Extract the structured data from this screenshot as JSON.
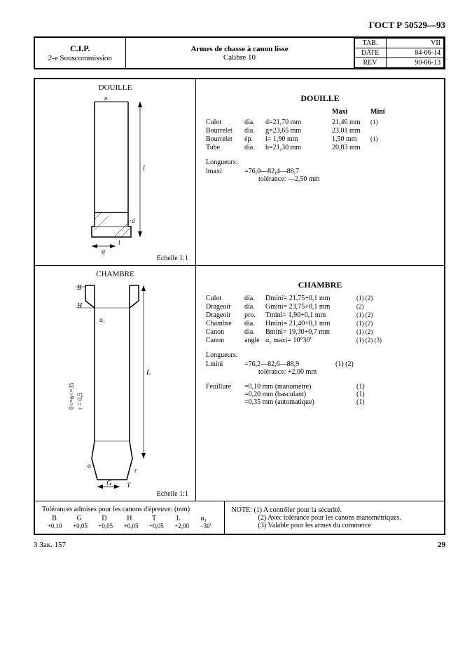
{
  "doc_id": "ГОСТ Р 50529—93",
  "header": {
    "cip": "C.I.P.",
    "sous": "2-e Souscommission",
    "arms": "Armes de chasse à canon lisse",
    "calibre": "Calibre 10",
    "tab_label": "TAB.",
    "tab_val": "VII",
    "date_label": "DATE",
    "date_val": "84-06-14",
    "rev_label": "REV",
    "rev_val": "90-06-13"
  },
  "douille": {
    "title": "DOUILLE",
    "diagram_label": "DOUILLE",
    "scale": "Echelle 1:1",
    "col_maxi": "Maxi",
    "col_mini": "Mini",
    "rows": [
      {
        "a": "Culot",
        "b": "dia.",
        "c": "d=21,70 mm",
        "d": "21,46 mm",
        "e": "(1)"
      },
      {
        "a": "Bourrelet",
        "b": "dia.",
        "c": "g=23,65 mm",
        "d": "23,01 mm",
        "e": ""
      },
      {
        "a": "Bourrelet",
        "b": "ép.",
        "c": "l= 1,90 mm",
        "d": "1,50 mm",
        "e": "(1)"
      },
      {
        "a": "Tube",
        "b": "dia.",
        "c": "h=21,30 mm",
        "d": "20,83 mm",
        "e": ""
      }
    ],
    "long_label": "Longueurs:",
    "long_sym": "lmaxi",
    "long_val": "=76,0—82,4—88,7",
    "long_tol": "tolérance: —2,50 mm"
  },
  "chambre": {
    "title": "CHAMBRE",
    "diagram_label": "CHAMBRE",
    "scale": "Echelle 1:1",
    "rows": [
      {
        "a": "Culot",
        "b": "dia.",
        "c": "Dmini= 21,75+0,1 mm",
        "e": "(1) (2)"
      },
      {
        "a": "Drageoir",
        "b": "dia.",
        "c": "Gmini= 23,75+0,1 mm",
        "e": "(2)"
      },
      {
        "a": "Drageoir",
        "b": "pro.",
        "c": "Tmini=  1,90+0,1 mm",
        "e": "(1) (2)"
      },
      {
        "a": "Chambre",
        "b": "dia.",
        "c": "Hmini= 21,40+0,1 mm",
        "e": "(1) (2)"
      },
      {
        "a": "Canon",
        "b": "dia.",
        "c": "Bmini= 19,30+0,7 mm",
        "e": "(1) (2)"
      },
      {
        "a": "Canon",
        "b": "angle",
        "c": "α₁ maxi=    10°30′",
        "e": "(1) (2) (3)"
      }
    ],
    "long_label": "Longueurs:",
    "long_sym": "Lmini",
    "long_val": "=76,2—82,6—88,9",
    "long_ref": "(1) (2)",
    "long_tol": "tolérance: +2,00 mm",
    "feuil_label": "Feuillure",
    "feuil": [
      {
        "v": "=0,10 mm (manomètre)",
        "r": "(1)"
      },
      {
        "v": "=0,20 mm (basculant)",
        "r": "(1)"
      },
      {
        "v": "=0,35 mm (automatique)",
        "r": "(1)"
      }
    ],
    "side_note": "0<=α<=35\nr = 0,5"
  },
  "tolerances": {
    "title": "Tolérances admises pour les canons d'épreuve: (mm)",
    "syms": [
      "B",
      "G",
      "D",
      "H",
      "T",
      "L",
      "α₁"
    ],
    "vals": [
      "+0,10",
      "+0,05",
      "+0,05",
      "+0,05",
      "+0,05",
      "+2,00",
      "−30′"
    ]
  },
  "notes": {
    "title": "NOTE:",
    "items": [
      "(1) A contrôler pour la sécurité.",
      "(2) Avec tolérance pour les canons manométriques.",
      "(3) Valable pour les armes du commerce"
    ]
  },
  "footer": {
    "ref": "3 Зак. 157",
    "page": "29"
  }
}
